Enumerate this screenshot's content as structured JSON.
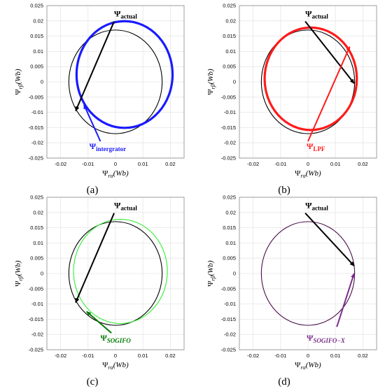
{
  "chart_data": [
    {
      "type": "scatter",
      "subcaption": "(a)",
      "xlabel": {
        "sym": "Ψ",
        "sub": "rα",
        "unit": "(Wb)"
      },
      "ylabel": {
        "sym": "Ψ",
        "sub": "rβ",
        "unit": "(Wb)"
      },
      "xlim": [
        -0.025,
        0.025
      ],
      "ylim": [
        -0.025,
        0.025
      ],
      "xticks": [
        "-0.02",
        "-0.01",
        "0",
        "0.01",
        "0.02"
      ],
      "yticks": [
        "0.025",
        "0.02",
        "0.015",
        "0.01",
        "0.005",
        "0",
        "-0.005",
        "-0.01",
        "-0.015",
        "-0.02",
        "-0.025"
      ],
      "series": [
        {
          "kind": "circle",
          "color": "#000000",
          "center": [
            0.0,
            0.0
          ],
          "radius": 0.017
        },
        {
          "kind": "circle",
          "color": "#1a1aff",
          "center": [
            0.0033,
            0.0024
          ],
          "radius": 0.0175,
          "thick": true
        }
      ],
      "annotations": [
        {
          "sym": "Ψ",
          "sub": "actual",
          "color": "#000000",
          "label_at": [
            -0.0005,
            0.0215
          ],
          "arrow_from": [
            -0.0005,
            0.0198
          ],
          "arrow_to": [
            -0.0145,
            -0.0095
          ]
        },
        {
          "sym": "Ψ",
          "sub": "intergrator",
          "color": "#1a1aff",
          "label_at": [
            -0.0095,
            -0.022
          ],
          "arrow_from": [
            -0.0055,
            -0.0195
          ],
          "arrow_to": [
            -0.0115,
            -0.0075
          ]
        }
      ]
    },
    {
      "type": "scatter",
      "subcaption": "(b)",
      "xlabel": {
        "sym": "Ψ",
        "sub": "rα",
        "unit": "(Wb)"
      },
      "ylabel": {
        "sym": "Ψ",
        "sub": "rβ",
        "unit": "(Wb)"
      },
      "xlim": [
        -0.025,
        0.025
      ],
      "ylim": [
        -0.025,
        0.025
      ],
      "xticks": [
        "-0.02",
        "-0.01",
        "0",
        "0.01",
        "0.02"
      ],
      "yticks": [
        "0.025",
        "0.02",
        "0.015",
        "0.01",
        "0.005",
        "0",
        "-0.005",
        "-0.01",
        "-0.015",
        "-0.02",
        "-0.025"
      ],
      "series": [
        {
          "kind": "circle",
          "color": "#000000",
          "center": [
            0.0,
            0.0
          ],
          "radius": 0.017
        },
        {
          "kind": "circle",
          "color": "#ff1a1a",
          "center": [
            0.001,
            0.001
          ],
          "radius": 0.0168,
          "thick": true
        }
      ],
      "annotations": [
        {
          "sym": "Ψ",
          "sub": "actual",
          "color": "#000000",
          "label_at": [
            -0.001,
            0.0215
          ],
          "arrow_from": [
            -0.001,
            0.0198
          ],
          "arrow_to": [
            0.0168,
            -0.0005
          ]
        },
        {
          "sym": "Ψ",
          "sub": "LPF",
          "color": "#ff1a1a",
          "label_at": [
            -0.0005,
            -0.022
          ],
          "arrow_from": [
            0.0,
            -0.0195
          ],
          "arrow_to": [
            0.0152,
            0.0115
          ]
        }
      ]
    },
    {
      "type": "scatter",
      "subcaption": "(c)",
      "xlabel": {
        "sym": "Ψ",
        "sub": "rα",
        "unit": "(Wb)"
      },
      "ylabel": {
        "sym": "Ψ",
        "sub": "rβ",
        "unit": "(Wb)"
      },
      "xlim": [
        -0.025,
        0.025
      ],
      "ylim": [
        -0.025,
        0.025
      ],
      "xticks": [
        "-0.02",
        "-0.01",
        "0",
        "0.01",
        "0.02"
      ],
      "yticks": [
        "0.025",
        "0.02",
        "0.015",
        "0.01",
        "0.005",
        "0",
        "-0.005",
        "-0.01",
        "-0.015",
        "-0.02",
        "-0.025"
      ],
      "series": [
        {
          "kind": "circle",
          "color": "#000000",
          "center": [
            0.0,
            0.0
          ],
          "radius": 0.017
        },
        {
          "kind": "circle",
          "color": "#33ee33",
          "center": [
            0.0018,
            0.0007
          ],
          "radius": 0.0171
        }
      ],
      "annotations": [
        {
          "sym": "Ψ",
          "sub": "actual",
          "color": "#000000",
          "label_at": [
            -0.0005,
            0.0215
          ],
          "arrow_from": [
            -0.0005,
            0.0198
          ],
          "arrow_to": [
            -0.0145,
            -0.0095
          ]
        },
        {
          "sym": "Ψ",
          "sub": "SOGIFO",
          "color": "#007a00",
          "label_at": [
            -0.0055,
            -0.022
          ],
          "arrow_from": [
            -0.0015,
            -0.0195
          ],
          "arrow_to": [
            -0.0105,
            -0.0125
          ]
        }
      ]
    },
    {
      "type": "scatter",
      "subcaption": "(d)",
      "xlabel": {
        "sym": "Ψ",
        "sub": "rα",
        "unit": "(Wb)"
      },
      "ylabel": {
        "sym": "Ψ",
        "sub": "rβ",
        "unit": "(Wb)"
      },
      "xlim": [
        -0.025,
        0.025
      ],
      "ylim": [
        -0.025,
        0.025
      ],
      "xticks": [
        "-0.02",
        "-0.01",
        "0",
        "0.01",
        "0.02"
      ],
      "yticks": [
        "0.025",
        "0.02",
        "0.015",
        "0.01",
        "0.005",
        "0",
        "-0.005",
        "-0.01",
        "-0.015",
        "-0.02",
        "-0.025"
      ],
      "series": [
        {
          "kind": "circle",
          "color": "#4a0f4a",
          "center": [
            0.0,
            0.0
          ],
          "radius": 0.017
        }
      ],
      "annotations": [
        {
          "sym": "Ψ",
          "sub": "actual",
          "color": "#000000",
          "label_at": [
            -0.001,
            0.0215
          ],
          "arrow_from": [
            -0.001,
            0.0198
          ],
          "arrow_to": [
            0.0168,
            0.0025
          ]
        },
        {
          "sym": "Ψ",
          "sub": "SOGIFO−X",
          "color": "#7b2d8b",
          "label_at": [
            -0.0005,
            -0.022
          ],
          "arrow_from": [
            0.0105,
            -0.0175
          ],
          "arrow_to": [
            0.0168,
            0.0
          ]
        }
      ]
    }
  ]
}
